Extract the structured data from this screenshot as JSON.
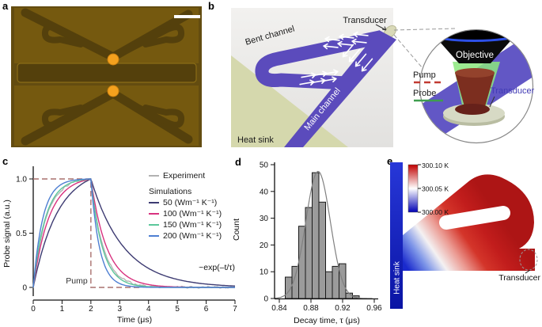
{
  "figure": {
    "background": "#ffffff"
  },
  "panels": {
    "a": {
      "label": "a",
      "description": "optical micrograph of phononic device",
      "colors": {
        "background": "#634c10",
        "raised": "#75590f",
        "channel_slot": "#54400c",
        "dot": "#f4a11e",
        "scale_bar": "#ffffff"
      }
    },
    "b": {
      "label": "b",
      "bent_channel": "Bent channel",
      "transducer": "Transducer",
      "main_channel": "Main channel",
      "heat_sink": "Heat sink",
      "inset": {
        "objective": "Objective",
        "pump": "Pump",
        "probe": "Probe",
        "transducer": "Transducer"
      },
      "colors": {
        "channel": "#5b4bbc",
        "heat_sink_wedge": "#d5d8ad",
        "backdrop": "#e9e8e6",
        "pump_line": "#c23a32",
        "probe_line": "#3f9e4f",
        "inset_transducer_text": "#423bb5"
      }
    },
    "c": {
      "label": "c"
    },
    "d": {
      "label": "d"
    },
    "e": {
      "label": "e",
      "heat_sink": "Heat sink",
      "transducer": "Transducer",
      "colorbar": {
        "max_label": "300.10 K",
        "mid_label": "300.05 K",
        "min_label": "300.00 K",
        "max": 300.1,
        "mid": 300.05,
        "min": 300.0,
        "colors": [
          "#c00000",
          "#ffffff",
          "#0000b4"
        ]
      }
    }
  },
  "chart_data": [
    {
      "panel": "c",
      "type": "line",
      "xlabel": "Time (μs)",
      "ylabel": "Probe signal (a.u.)",
      "xlim": [
        0,
        7
      ],
      "ylim": [
        0,
        1.05
      ],
      "xticks": [
        0,
        1,
        2,
        3,
        4,
        5,
        6,
        7
      ],
      "yticks": [
        0,
        0.5,
        1.0
      ],
      "ytick_labels": [
        "0",
        "0.5",
        "1.0"
      ],
      "grid": false,
      "legend_position": "top-right",
      "legend": {
        "experiment": "Experiment",
        "header": "Simulations"
      },
      "pump": {
        "label": "Pump",
        "on_interval": [
          0,
          2
        ],
        "zero_until": 3.7,
        "amplitude": 1.0,
        "style": "dashed",
        "color": "#a9706e"
      },
      "annotation": "~exp(–t/τ)",
      "series": [
        {
          "name": "Experiment",
          "role": "experiment",
          "color": "#b2b2b2",
          "tau_rise": 0.45,
          "tau_decay": 0.44,
          "noise": 0.016
        },
        {
          "name": "50 (Wm⁻¹ K⁻¹)",
          "kappa": 50,
          "role": "simulation",
          "color": "#3d3b72",
          "tau_rise": 0.85,
          "tau_decay": 1.15
        },
        {
          "name": "100 (Wm⁻¹ K⁻¹)",
          "kappa": 100,
          "role": "simulation",
          "color": "#d8327f",
          "tau_rise": 0.55,
          "tau_decay": 0.55
        },
        {
          "name": "150 (Wm⁻¹ K⁻¹)",
          "kappa": 150,
          "role": "simulation",
          "color": "#5bc79b",
          "tau_rise": 0.42,
          "tau_decay": 0.4
        },
        {
          "name": "200 (Wm⁻¹ K⁻¹)",
          "kappa": 200,
          "role": "simulation",
          "color": "#4e7fd2",
          "tau_rise": 0.33,
          "tau_decay": 0.3
        }
      ]
    },
    {
      "panel": "d",
      "type": "bar",
      "xlabel": "Decay time, τ (μs)",
      "ylabel": "Count",
      "xlim": [
        0.832,
        0.965
      ],
      "ylim": [
        0,
        50
      ],
      "xticks": [
        0.84,
        0.88,
        0.92,
        0.96
      ],
      "yticks": [
        0,
        10,
        20,
        30,
        40,
        50
      ],
      "bin_start": 0.8475,
      "bin_width": 0.0085,
      "counts": [
        8,
        12,
        27,
        34,
        47,
        36,
        10,
        12,
        13,
        2,
        1
      ],
      "bar_color": "#9b9b9b",
      "bar_edge": "#1a1a1a",
      "fit": {
        "type": "gaussian",
        "amplitude": 47.5,
        "mean": 0.889,
        "sigma": 0.0155,
        "color": "#808080"
      }
    },
    {
      "panel": "e",
      "type": "heatmap",
      "title": "steady-state temperature field",
      "colorbar_ticks": [
        "300.10 K",
        "300.05 K",
        "300.00 K"
      ],
      "temperature_range_K": [
        300.0,
        300.1
      ],
      "labels": {
        "cold_end": "Heat sink",
        "hot_end": "Transducer"
      }
    }
  ]
}
